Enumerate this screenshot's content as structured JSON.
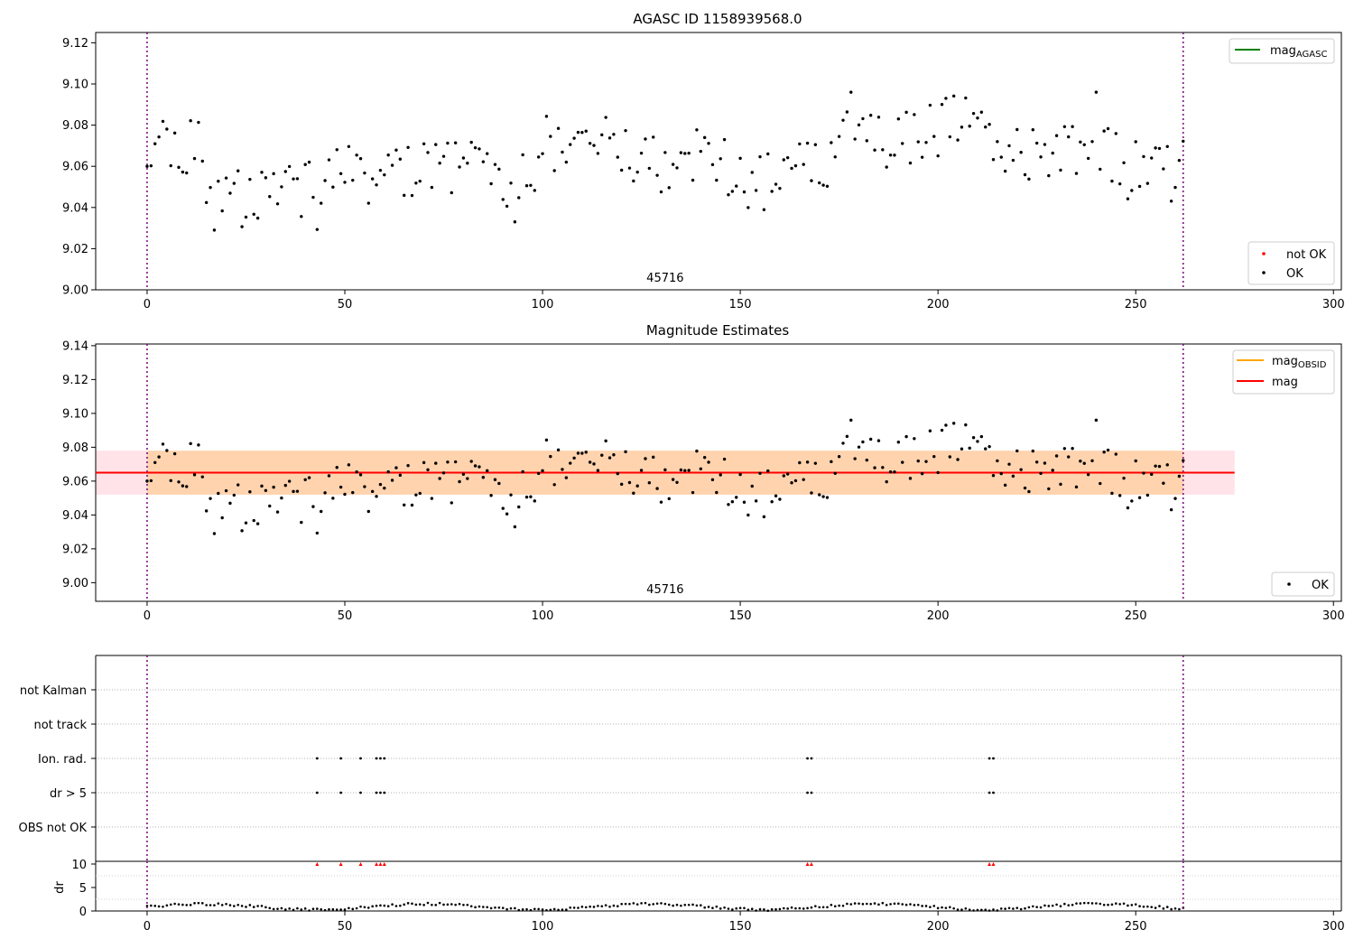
{
  "chart_data": [
    {
      "id": "p1",
      "type": "scatter",
      "title": "AGASC ID 1158939568.0",
      "xlabel": "",
      "ylabel": "",
      "xlim": [
        -13,
        302
      ],
      "ylim": [
        9.0,
        9.125
      ],
      "xticks": [
        0,
        50,
        100,
        150,
        200,
        250,
        300
      ],
      "yticks": [
        9.0,
        9.02,
        9.04,
        9.06,
        9.08,
        9.1,
        9.12
      ],
      "vlines": [
        0,
        262
      ],
      "annotation": "45716",
      "annotation_x": 131,
      "legend_lines": [
        {
          "label": "mag",
          "sub": "AGASC",
          "color": "#008000"
        }
      ],
      "legend_points": [
        {
          "label": "not OK",
          "color": "#ff0000"
        },
        {
          "label": "OK",
          "color": "#000000"
        }
      ],
      "series": [
        {
          "name": "OK",
          "color": "#000000"
        }
      ]
    },
    {
      "id": "p2",
      "type": "scatter",
      "title": "Magnitude Estimates",
      "xlabel": "",
      "ylabel": "",
      "xlim": [
        -13,
        302
      ],
      "ylim": [
        8.989,
        9.141
      ],
      "xticks": [
        0,
        50,
        100,
        150,
        200,
        250,
        300
      ],
      "yticks": [
        9.0,
        9.02,
        9.04,
        9.06,
        9.08,
        9.1,
        9.12,
        9.14
      ],
      "vlines": [
        0,
        262
      ],
      "annotation": "45716",
      "annotation_x": 131,
      "mag": 9.065,
      "band_agasc": [
        9.052,
        9.078,
        -13,
        275
      ],
      "band_obsid": [
        9.052,
        9.078,
        0,
        262
      ],
      "legend_lines": [
        {
          "label": "mag",
          "sub": "OBSID",
          "color": "#ffa500"
        },
        {
          "label": "mag",
          "sub": "",
          "color": "#ff0000"
        }
      ],
      "legend_points": [
        {
          "label": "OK",
          "color": "#000000"
        }
      ],
      "series": [
        {
          "name": "OK",
          "color": "#000000"
        }
      ]
    },
    {
      "id": "p3",
      "type": "scatter",
      "title": "",
      "xlim": [
        -13,
        302
      ],
      "categories": [
        "OBS not OK",
        "dr > 5",
        "Ion. rad.",
        "not track",
        "not Kalman"
      ],
      "flag_points": [
        43,
        49,
        54,
        58,
        59,
        60,
        167,
        168,
        213,
        214
      ]
    },
    {
      "id": "p4",
      "type": "scatter",
      "title": "",
      "xlim": [
        -13,
        302
      ],
      "ylim": [
        0,
        10
      ],
      "yticks": [
        0,
        5,
        10
      ],
      "ylabel": "dr",
      "xticks": [
        0,
        50,
        100,
        150,
        200,
        250,
        300
      ],
      "outliers_color": "#ff0000",
      "outliers": [
        43,
        49,
        54,
        58,
        59,
        60,
        167,
        168,
        213,
        214
      ]
    }
  ]
}
